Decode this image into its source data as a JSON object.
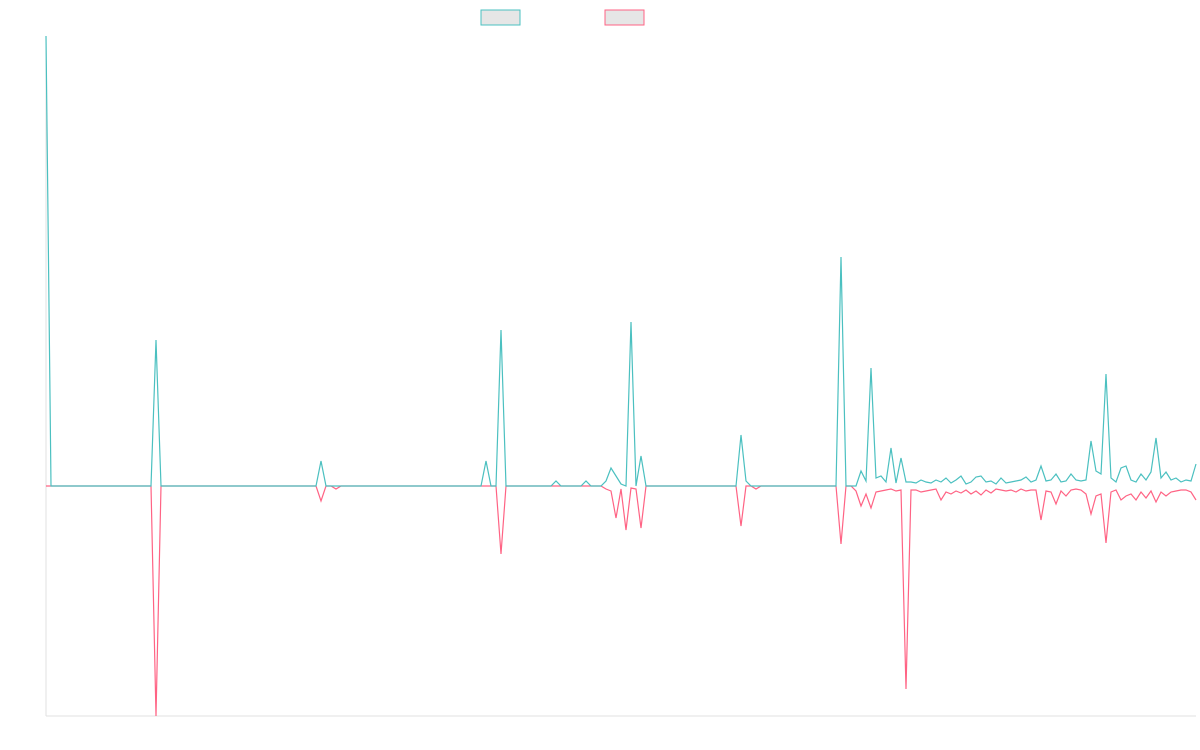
{
  "chart_data": {
    "type": "line",
    "categories": [
      null,
      null,
      null,
      null,
      null,
      null,
      null,
      null,
      null,
      null,
      null,
      null,
      null,
      null,
      null,
      null,
      null,
      null,
      null,
      null,
      null,
      null,
      null,
      null,
      null,
      null,
      null,
      null,
      null,
      null,
      null,
      null,
      null,
      null,
      null,
      null,
      null,
      null,
      null,
      null,
      null,
      null,
      null,
      null,
      null,
      null,
      null,
      null,
      null,
      null,
      null,
      null,
      null,
      null,
      null,
      null,
      null,
      null,
      null,
      null,
      null,
      null,
      null,
      null,
      null,
      null,
      null,
      null,
      null,
      null,
      null,
      null,
      null,
      null,
      null,
      null,
      null,
      null,
      null,
      null,
      null,
      null,
      null,
      null,
      null,
      null,
      null,
      null,
      null,
      null,
      null,
      null,
      null,
      null,
      null,
      null,
      null,
      null,
      null,
      null,
      null,
      null,
      null,
      null,
      null,
      null,
      null,
      null,
      null,
      null,
      null,
      null,
      null,
      null,
      null,
      null,
      null,
      null,
      null,
      null,
      null,
      null,
      null,
      null,
      null,
      null,
      null,
      null,
      null,
      null,
      null,
      null,
      null,
      null,
      null,
      null,
      null,
      null,
      null,
      null,
      null,
      null,
      null,
      null,
      null,
      null,
      null,
      null,
      null,
      null,
      null,
      null,
      null,
      null,
      null,
      null,
      null,
      null,
      null,
      null,
      null,
      null,
      null,
      null,
      null,
      null,
      null,
      null,
      null,
      null,
      null,
      null,
      null,
      null,
      null,
      null,
      null,
      null,
      null,
      null,
      null,
      null,
      null,
      null,
      null,
      null,
      null,
      null,
      null,
      null,
      null,
      null,
      null,
      null,
      null,
      null,
      null,
      null,
      null,
      null,
      null,
      null,
      null,
      null,
      null,
      null,
      null,
      null,
      null,
      null,
      null,
      null,
      null,
      null,
      null,
      null,
      null,
      null,
      null,
      null,
      null,
      null,
      null,
      null,
      null,
      null,
      null,
      null,
      null,
      null,
      null
    ],
    "series": [
      {
        "color": "#4bc0c0",
        "values": [
          450,
          0,
          0,
          0,
          0,
          0,
          0,
          0,
          0,
          0,
          0,
          0,
          0,
          0,
          0,
          0,
          0,
          0,
          0,
          0,
          0,
          0,
          146,
          0,
          0,
          0,
          0,
          0,
          0,
          0,
          0,
          0,
          0,
          0,
          0,
          0,
          0,
          0,
          0,
          0,
          0,
          0,
          0,
          0,
          0,
          0,
          0,
          0,
          0,
          0,
          0,
          0,
          0,
          0,
          0,
          25,
          0,
          0,
          0,
          0,
          0,
          0,
          0,
          0,
          0,
          0,
          0,
          0,
          0,
          0,
          0,
          0,
          0,
          0,
          0,
          0,
          0,
          0,
          0,
          0,
          0,
          0,
          0,
          0,
          0,
          0,
          0,
          0,
          25,
          0,
          0,
          156,
          0,
          0,
          0,
          0,
          0,
          0,
          0,
          0,
          0,
          0,
          5,
          0,
          0,
          0,
          0,
          0,
          5,
          0,
          0,
          0,
          5,
          18,
          10,
          2,
          0,
          164,
          0,
          30,
          0,
          0,
          0,
          0,
          0,
          0,
          0,
          0,
          0,
          0,
          0,
          0,
          0,
          0,
          0,
          0,
          0,
          0,
          0,
          51,
          5,
          0,
          0,
          0,
          0,
          0,
          0,
          0,
          0,
          0,
          0,
          0,
          0,
          0,
          0,
          0,
          0,
          0,
          0,
          229,
          0,
          0,
          0,
          15,
          5,
          118,
          8,
          10,
          4,
          38,
          3,
          28,
          4,
          4,
          3,
          6,
          4,
          3,
          6,
          4,
          8,
          3,
          6,
          10,
          2,
          4,
          9,
          10,
          4,
          5,
          2,
          8,
          3,
          4,
          5,
          6,
          9,
          4,
          6,
          20,
          5,
          6,
          12,
          4,
          5,
          12,
          6,
          5,
          6,
          45,
          15,
          12,
          112,
          8,
          4,
          18,
          20,
          6,
          4,
          12,
          6,
          14,
          48,
          8,
          14,
          6,
          8,
          4,
          6,
          5,
          22
        ]
      },
      {
        "color": "#ff6384",
        "values": [
          0,
          0,
          0,
          0,
          0,
          0,
          0,
          0,
          0,
          0,
          0,
          0,
          0,
          0,
          0,
          0,
          0,
          0,
          0,
          0,
          0,
          0,
          -230,
          0,
          0,
          0,
          0,
          0,
          0,
          0,
          0,
          0,
          0,
          0,
          0,
          0,
          0,
          0,
          0,
          0,
          0,
          0,
          0,
          0,
          0,
          0,
          0,
          0,
          0,
          0,
          0,
          0,
          0,
          0,
          0,
          -15,
          0,
          0,
          -3,
          0,
          0,
          0,
          0,
          0,
          0,
          0,
          0,
          0,
          0,
          0,
          0,
          0,
          0,
          0,
          0,
          0,
          0,
          0,
          0,
          0,
          0,
          0,
          0,
          0,
          0,
          0,
          0,
          0,
          0,
          0,
          0,
          -68,
          0,
          0,
          0,
          0,
          0,
          0,
          0,
          0,
          0,
          0,
          0,
          0,
          0,
          0,
          0,
          0,
          0,
          0,
          0,
          0,
          -3,
          -5,
          -32,
          -3,
          -44,
          -2,
          -3,
          -42,
          0,
          0,
          0,
          0,
          0,
          0,
          0,
          0,
          0,
          0,
          0,
          0,
          0,
          0,
          0,
          0,
          0,
          0,
          0,
          -40,
          0,
          0,
          -3,
          0,
          0,
          0,
          0,
          0,
          0,
          0,
          0,
          0,
          0,
          0,
          0,
          0,
          0,
          0,
          0,
          -58,
          0,
          0,
          -5,
          -20,
          -8,
          -22,
          -6,
          -5,
          -4,
          -3,
          -5,
          -4,
          -203,
          -4,
          -4,
          -6,
          -5,
          -4,
          -3,
          -14,
          -6,
          -8,
          -5,
          -7,
          -4,
          -8,
          -5,
          -9,
          -4,
          -7,
          -3,
          -4,
          -5,
          -4,
          -6,
          -3,
          -5,
          -4,
          -4,
          -34,
          -5,
          -6,
          -18,
          -5,
          -10,
          -4,
          -3,
          -4,
          -8,
          -28,
          -10,
          -8,
          -57,
          -6,
          -4,
          -14,
          -10,
          -8,
          -14,
          -6,
          -12,
          -5,
          -16,
          -6,
          -10,
          -6,
          -5,
          -4,
          -4,
          -6,
          -14
        ]
      }
    ],
    "ylim": [
      -230,
      450
    ]
  }
}
